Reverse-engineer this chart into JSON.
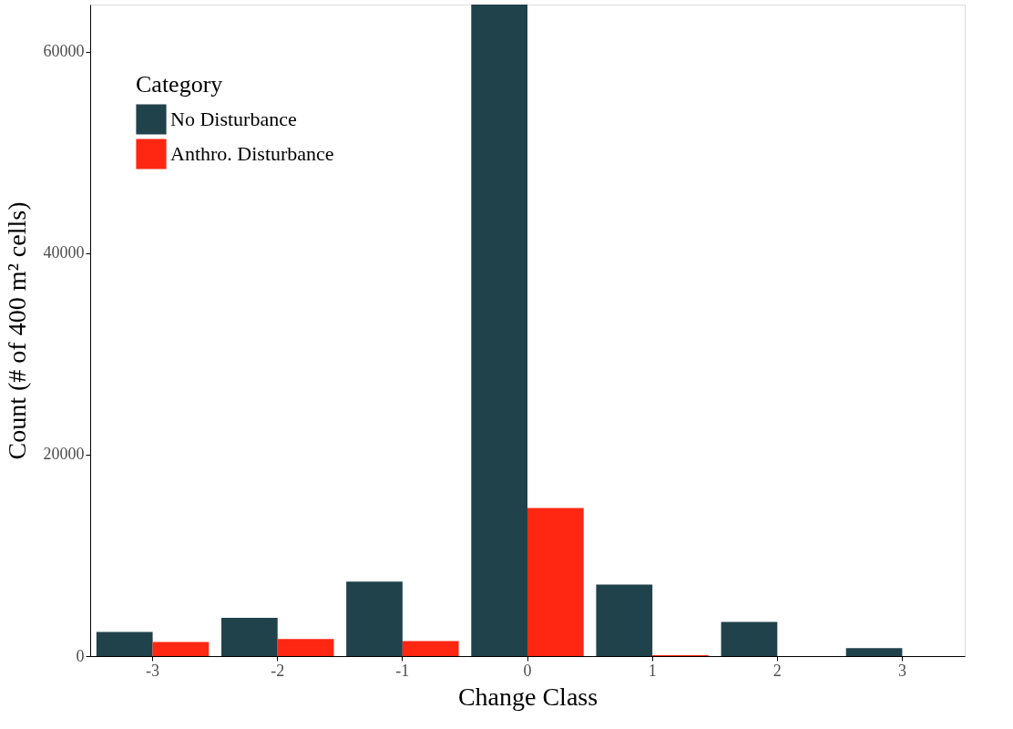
{
  "chart_data": {
    "type": "bar",
    "xlabel": "Change Class",
    "ylabel": "Count (# of 400 m² cells)",
    "legend_title": "Category",
    "categories": [
      "-3",
      "-2",
      "-1",
      "0",
      "1",
      "2",
      "3"
    ],
    "series": [
      {
        "name": "No Disturbance",
        "color": "#20424b",
        "values": [
          2400,
          3800,
          7400,
          64700,
          7100,
          3400,
          800
        ]
      },
      {
        "name": "Anthro. Disturbance",
        "color": "#ff2712",
        "values": [
          1400,
          1700,
          1500,
          14700,
          100,
          0,
          0
        ]
      }
    ],
    "ylim": [
      0,
      64700
    ],
    "yticks": [
      0,
      20000,
      40000,
      60000
    ],
    "grid": false,
    "legend": "top left"
  }
}
